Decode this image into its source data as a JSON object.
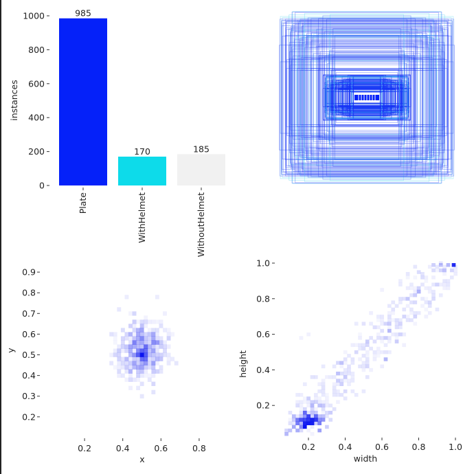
{
  "chart_data": [
    {
      "type": "bar",
      "categories": [
        "Plate",
        "WithHelmet",
        "WithoutHelmet"
      ],
      "values": [
        985,
        170,
        185
      ],
      "data_labels": [
        "985",
        "170",
        "185"
      ],
      "colors": [
        "#0521f9",
        "#0ddbea",
        "#f1f1f1"
      ],
      "xlabel": "",
      "ylabel": "instances",
      "ylim": [
        0,
        1000
      ],
      "yticks": [
        0,
        200,
        400,
        600,
        800,
        1000
      ],
      "ytick_labels": [
        "0",
        "200",
        "400",
        "600",
        "800",
        "1000"
      ],
      "grid": false
    },
    {
      "type": "boxes",
      "description_of_marks": "overlaid bounding boxes centered in frame",
      "colors": [
        "#1533f5",
        "#4fd3f0"
      ],
      "axes_visible": false
    },
    {
      "type": "heatmap",
      "xlabel": "x",
      "ylabel": "y",
      "xticks": [
        0.2,
        0.4,
        0.6,
        0.8
      ],
      "xtick_labels": [
        "0.2",
        "0.4",
        "0.6",
        "0.8"
      ],
      "yticks": [
        0.2,
        0.3,
        0.4,
        0.5,
        0.6,
        0.7,
        0.8,
        0.9
      ],
      "ytick_labels": [
        "0.2",
        "0.3",
        "0.4",
        "0.5",
        "0.6",
        "0.7",
        "0.8",
        "0.9"
      ],
      "color": "#0a14f0",
      "cells": [
        [
          0.5,
          0.5,
          1.0
        ],
        [
          0.48,
          0.5,
          0.5
        ],
        [
          0.52,
          0.5,
          0.5
        ],
        [
          0.5,
          0.52,
          0.45
        ],
        [
          0.5,
          0.48,
          0.45
        ],
        [
          0.48,
          0.52,
          0.3
        ],
        [
          0.52,
          0.48,
          0.3
        ],
        [
          0.46,
          0.56,
          0.25
        ],
        [
          0.5,
          0.58,
          0.3
        ],
        [
          0.48,
          0.62,
          0.2
        ],
        [
          0.46,
          0.46,
          0.2
        ],
        [
          0.52,
          0.44,
          0.2
        ],
        [
          0.5,
          0.42,
          0.25
        ],
        [
          0.48,
          0.4,
          0.15
        ],
        [
          0.44,
          0.6,
          0.15
        ],
        [
          0.54,
          0.6,
          0.15
        ],
        [
          0.5,
          0.66,
          0.15
        ],
        [
          0.46,
          0.7,
          0.12
        ],
        [
          0.5,
          0.36,
          0.12
        ],
        [
          0.44,
          0.52,
          0.15
        ],
        [
          0.56,
          0.52,
          0.15
        ],
        [
          0.4,
          0.54,
          0.1
        ],
        [
          0.6,
          0.54,
          0.1
        ],
        [
          0.5,
          0.3,
          0.1
        ],
        [
          0.42,
          0.78,
          0.08
        ],
        [
          0.58,
          0.78,
          0.08
        ],
        [
          0.36,
          0.6,
          0.08
        ],
        [
          0.64,
          0.6,
          0.08
        ]
      ]
    },
    {
      "type": "heatmap",
      "xlabel": "width",
      "ylabel": "height",
      "xticks": [
        0.2,
        0.4,
        0.6,
        0.8,
        1.0
      ],
      "xtick_labels": [
        "0.2",
        "0.4",
        "0.6",
        "0.8",
        "1.0"
      ],
      "yticks": [
        0.2,
        0.4,
        0.6,
        0.8,
        1.0
      ],
      "ytick_labels": [
        "0.2",
        "0.4",
        "0.6",
        "0.8",
        "1.0"
      ],
      "color": "#0a14f0",
      "cells": [
        [
          0.18,
          0.08,
          1.0
        ],
        [
          0.2,
          0.1,
          0.9
        ],
        [
          0.22,
          0.1,
          0.85
        ],
        [
          0.18,
          0.1,
          0.8
        ],
        [
          0.16,
          0.08,
          0.5
        ],
        [
          0.22,
          0.12,
          0.6
        ],
        [
          0.14,
          0.06,
          0.35
        ],
        [
          0.12,
          0.08,
          0.3
        ],
        [
          0.26,
          0.1,
          0.45
        ],
        [
          0.26,
          0.06,
          0.4
        ],
        [
          0.28,
          0.12,
          0.3
        ],
        [
          0.24,
          0.14,
          0.3
        ],
        [
          0.3,
          0.08,
          0.2
        ],
        [
          0.32,
          0.12,
          0.15
        ],
        [
          0.08,
          0.04,
          0.3
        ],
        [
          0.1,
          0.06,
          0.25
        ],
        [
          0.34,
          0.18,
          0.12
        ],
        [
          0.3,
          0.16,
          0.15
        ],
        [
          0.28,
          0.2,
          0.12
        ],
        [
          0.4,
          0.24,
          0.1
        ],
        [
          0.5,
          0.4,
          0.06
        ],
        [
          0.99,
          0.99,
          0.9
        ],
        [
          0.96,
          0.99,
          0.3
        ],
        [
          0.92,
          0.99,
          0.25
        ],
        [
          0.88,
          0.99,
          0.2
        ],
        [
          0.8,
          0.95,
          0.15
        ],
        [
          0.7,
          0.9,
          0.08
        ],
        [
          0.6,
          0.85,
          0.06
        ],
        [
          0.2,
          0.6,
          0.06
        ],
        [
          0.16,
          0.58,
          0.06
        ]
      ]
    }
  ]
}
